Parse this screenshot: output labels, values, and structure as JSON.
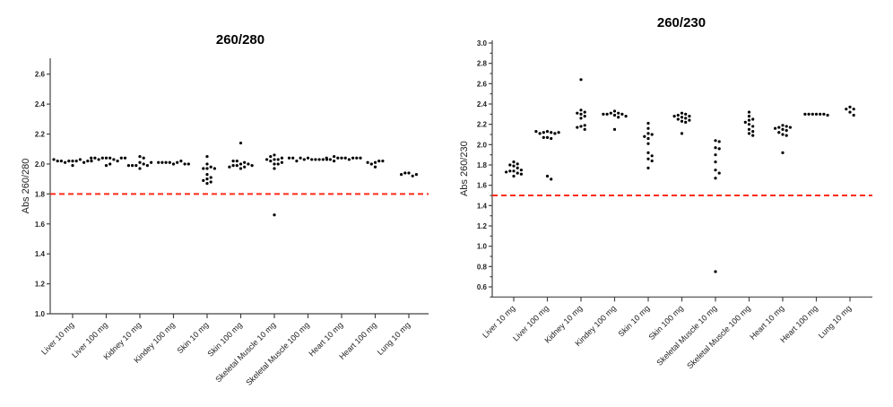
{
  "chart_data": [
    {
      "type": "scatter",
      "title": "260/280",
      "ylabel": "Abs 260/280",
      "ylim": [
        1.0,
        2.7
      ],
      "yticks": [
        1.0,
        1.2,
        1.4,
        1.6,
        1.8,
        2.0,
        2.2,
        2.4,
        2.6
      ],
      "grid": false,
      "reference_line": {
        "y": 1.8,
        "color": "#ff2a1a",
        "style": "dashed"
      },
      "categories": [
        "Liver 10 mg",
        "Liver 100 mg",
        "Kidney 10 mg",
        "Kindey 100 mg",
        "Skin 10 mg",
        "Skin 100 mg",
        "Skeletal Muscle 10 mg",
        "Skeletal Muscle 100 mg",
        "Heart 10 mg",
        "Heart 100 mg",
        "Lung 10 mg"
      ],
      "series": [
        [
          2.02,
          2.02,
          2.02,
          2.03,
          2.01,
          2.01,
          1.99,
          2.02,
          2.02,
          2.02,
          2.02,
          2.03
        ],
        [
          2.04,
          2.04,
          2.04,
          2.03,
          2.03,
          2.02,
          1.99,
          2.0,
          2.04,
          2.04,
          2.04,
          2.04
        ],
        [
          2.05,
          2.04,
          2.01,
          2.0,
          1.99,
          1.97,
          1.99,
          1.99,
          2.01,
          1.99
        ],
        [
          2.0,
          2.01,
          2.01,
          2.02,
          2.01,
          2.0,
          2.01,
          2.0,
          2.01
        ],
        [
          2.05,
          2.0,
          1.98,
          1.97,
          1.97,
          1.93,
          1.91,
          1.9,
          1.88,
          1.87,
          1.89,
          1.97
        ],
        [
          2.14,
          2.0,
          2.01,
          1.99,
          1.98,
          2.02,
          2.0,
          1.99,
          1.97,
          2.02,
          1.99,
          1.98
        ],
        [
          2.03,
          2.03,
          2.05,
          2.06,
          2.02,
          2.0,
          1.97,
          1.66,
          2.04,
          2.0,
          2.03,
          2.01
        ],
        [
          2.04,
          2.03,
          2.03,
          2.03,
          2.04,
          2.03,
          2.02,
          2.03,
          2.04,
          2.03,
          2.04
        ],
        [
          2.04,
          2.04,
          2.04,
          2.03,
          2.05,
          2.04,
          2.02,
          2.03,
          2.04,
          2.04,
          2.04
        ],
        [
          2.01,
          2.02,
          2.0,
          1.98,
          2.02,
          2.01
        ],
        [
          1.94,
          1.92,
          1.94,
          1.93,
          1.93
        ]
      ]
    },
    {
      "type": "scatter",
      "title": "260/230",
      "ylabel": "Abs 260/230",
      "ylim": [
        0.5,
        3.0
      ],
      "yticks": [
        0.6,
        0.8,
        1.0,
        1.2,
        1.4,
        1.6,
        1.8,
        2.0,
        2.2,
        2.4,
        2.6,
        2.8,
        3.0
      ],
      "grid": false,
      "reference_line": {
        "y": 1.5,
        "color": "#ff2a1a",
        "style": "dashed"
      },
      "categories": [
        "Liver 10 mg",
        "Liver 100 mg",
        "Kidney 10 mg",
        "Kindey 100 mg",
        "Skin 10 mg",
        "Skin 100 mg",
        "Skeletal Muscle 10 mg",
        "Skeletal Muscle 100 mg",
        "Heart 10 mg",
        "Heart 100 mg",
        "Lung 10 mg"
      ],
      "series": [
        [
          1.83,
          1.81,
          1.79,
          1.77,
          1.74,
          1.74,
          1.72,
          1.69,
          1.8,
          1.75,
          1.71,
          1.73
        ],
        [
          2.13,
          2.12,
          2.12,
          2.11,
          2.11,
          2.12,
          2.13,
          2.07,
          2.06,
          2.07,
          1.69,
          1.66
        ],
        [
          2.64,
          2.34,
          2.32,
          2.31,
          2.3,
          2.28,
          2.26,
          2.18,
          2.15,
          2.17,
          2.19
        ],
        [
          2.33,
          2.31,
          2.31,
          2.3,
          2.3,
          2.29,
          2.28,
          2.27,
          2.3,
          2.15
        ],
        [
          2.21,
          2.16,
          2.11,
          2.1,
          2.08,
          2.06,
          2.01,
          1.92,
          1.89,
          1.86,
          1.84,
          1.77
        ],
        [
          2.31,
          2.3,
          2.29,
          2.28,
          2.27,
          2.26,
          2.25,
          2.24,
          2.23,
          2.22,
          2.28,
          2.11
        ],
        [
          2.04,
          2.03,
          1.97,
          1.96,
          1.9,
          1.83,
          1.75,
          1.72,
          1.67,
          0.75
        ],
        [
          2.32,
          2.28,
          2.25,
          2.24,
          2.22,
          2.2,
          2.18,
          2.15,
          2.13,
          2.11,
          2.09
        ],
        [
          2.19,
          2.18,
          2.17,
          2.17,
          2.16,
          2.15,
          2.14,
          2.12,
          2.1,
          2.09,
          1.92
        ],
        [
          2.3,
          2.3,
          2.3,
          2.3,
          2.3,
          2.29,
          2.3
        ],
        [
          2.37,
          2.35,
          2.35,
          2.32,
          2.29
        ]
      ]
    }
  ]
}
